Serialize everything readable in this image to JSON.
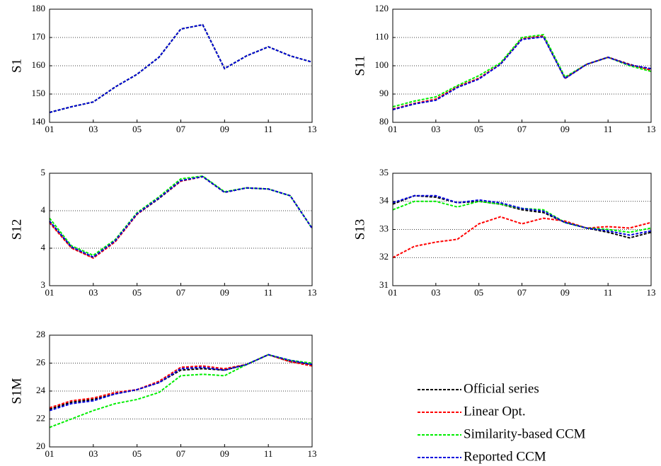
{
  "legend": [
    {
      "name": "Official series",
      "color": "#000000"
    },
    {
      "name": "Linear Opt.",
      "color": "#ff0000"
    },
    {
      "name": "Similarity-based CCM",
      "color": "#00ee00"
    },
    {
      "name": "Reported CCM",
      "color": "#0000dd"
    }
  ],
  "chart_data": [
    {
      "type": "line",
      "ylabel": "S1",
      "categories": [
        "01",
        null,
        "03",
        null,
        "05",
        null,
        "07",
        null,
        "09",
        null,
        "11",
        null,
        "13"
      ],
      "ylim": [
        140,
        180
      ],
      "yticks": [
        140,
        150,
        160,
        170,
        180
      ],
      "grid": true,
      "series": [
        {
          "values": [
            143.5,
            145.5,
            147.2,
            152.5,
            157,
            163,
            173,
            174.5,
            159,
            163.5,
            166.7,
            163.5,
            161.3
          ]
        },
        {
          "values": [
            143.5,
            145.5,
            147.2,
            152.5,
            157,
            163,
            173,
            174.5,
            159,
            163.5,
            166.7,
            163.5,
            161.3
          ]
        },
        {
          "values": [
            143.5,
            145.5,
            147.2,
            152.5,
            157,
            163,
            173,
            174.5,
            159,
            163.5,
            166.7,
            163.5,
            161.3
          ]
        },
        {
          "values": [
            143.5,
            145.5,
            147.2,
            152.5,
            157,
            163,
            173,
            174.5,
            159,
            163.5,
            166.7,
            163.5,
            161.3
          ]
        }
      ]
    },
    {
      "type": "line",
      "ylabel": "S11",
      "categories": [
        "01",
        null,
        "03",
        null,
        "05",
        null,
        "07",
        null,
        "09",
        null,
        "11",
        null,
        "13"
      ],
      "ylim": [
        80,
        120
      ],
      "yticks": [
        80,
        90,
        100,
        110,
        120
      ],
      "grid": true,
      "series": [
        {
          "values": [
            84.5,
            86.5,
            88,
            92.5,
            95.5,
            100.5,
            109.5,
            110.5,
            95.5,
            100.5,
            103,
            100.5,
            98.5
          ]
        },
        {
          "values": [
            84.7,
            86.7,
            88.2,
            92.6,
            95.6,
            100.6,
            109.6,
            110.6,
            95.6,
            100.5,
            103,
            100.4,
            98.4
          ]
        },
        {
          "values": [
            85.5,
            87.5,
            89,
            93,
            96.5,
            101,
            110,
            111,
            96,
            100.5,
            103,
            100,
            98
          ]
        },
        {
          "values": [
            84.5,
            86.5,
            87.8,
            92.3,
            95.3,
            100.5,
            109.3,
            110.2,
            95.5,
            100.5,
            103,
            100.3,
            99
          ]
        }
      ]
    },
    {
      "type": "line",
      "ylabel": "S12",
      "categories": [
        "01",
        null,
        "03",
        null,
        "05",
        null,
        "07",
        null,
        "09",
        null,
        "11",
        null,
        "13"
      ],
      "ylim": [
        3,
        5
      ],
      "yticks": [
        3,
        {
          "value": 3.6667,
          "label": "4"
        },
        {
          "value": 4.3333,
          "label": "4"
        },
        5
      ],
      "grid": true,
      "series": [
        {
          "values": [
            4.14,
            3.68,
            3.5,
            3.79,
            4.27,
            4.55,
            4.86,
            4.94,
            4.66,
            4.74,
            4.72,
            4.6,
            4.02
          ]
        },
        {
          "values": [
            4.12,
            3.67,
            3.49,
            3.78,
            4.27,
            4.56,
            4.86,
            4.94,
            4.66,
            4.74,
            4.72,
            4.6,
            4.02
          ]
        },
        {
          "values": [
            4.2,
            3.71,
            3.54,
            3.82,
            4.3,
            4.58,
            4.9,
            4.95,
            4.67,
            4.74,
            4.72,
            4.6,
            4.02
          ]
        },
        {
          "values": [
            4.15,
            3.69,
            3.51,
            3.8,
            4.28,
            4.56,
            4.87,
            4.94,
            4.66,
            4.74,
            4.72,
            4.6,
            4.02
          ]
        }
      ]
    },
    {
      "type": "line",
      "ylabel": "S13",
      "categories": [
        "01",
        null,
        "03",
        null,
        "05",
        null,
        "07",
        null,
        "09",
        null,
        "11",
        null,
        "13"
      ],
      "ylim": [
        31,
        35
      ],
      "yticks": [
        31,
        32,
        33,
        34,
        35
      ],
      "grid": true,
      "series": [
        {
          "values": [
            33.9,
            34.2,
            34.15,
            33.95,
            34,
            33.9,
            33.7,
            33.6,
            33.25,
            33.05,
            32.9,
            32.7,
            32.9
          ]
        },
        {
          "values": [
            32,
            32.4,
            32.55,
            32.65,
            33.2,
            33.45,
            33.2,
            33.4,
            33.3,
            33.05,
            33.1,
            33.05,
            33.25
          ]
        },
        {
          "values": [
            33.7,
            34,
            34,
            33.8,
            34,
            33.9,
            33.75,
            33.7,
            33.25,
            33.05,
            33,
            32.9,
            33.05
          ]
        },
        {
          "values": [
            33.95,
            34.2,
            34.2,
            33.95,
            34.05,
            33.95,
            33.75,
            33.65,
            33.25,
            33.05,
            32.95,
            32.8,
            32.95
          ]
        }
      ]
    },
    {
      "type": "line",
      "ylabel": "S1M",
      "categories": [
        "01",
        null,
        "03",
        null,
        "05",
        null,
        "07",
        null,
        "09",
        null,
        "11",
        null,
        "13"
      ],
      "ylim": [
        20,
        28
      ],
      "yticks": [
        20,
        22,
        24,
        26,
        28
      ],
      "grid": true,
      "series": [
        {
          "values": [
            22.7,
            23.2,
            23.4,
            23.8,
            24.1,
            24.6,
            25.5,
            25.6,
            25.5,
            25.9,
            26.6,
            26.1,
            25.9
          ]
        },
        {
          "values": [
            22.8,
            23.3,
            23.5,
            23.9,
            24.1,
            24.7,
            25.7,
            25.8,
            25.6,
            25.9,
            26.6,
            26.1,
            25.8
          ]
        },
        {
          "values": [
            21.4,
            22,
            22.6,
            23.1,
            23.4,
            23.9,
            25.1,
            25.2,
            25.1,
            25.9,
            26.6,
            26.2,
            26
          ]
        },
        {
          "values": [
            22.6,
            23.1,
            23.3,
            23.8,
            24.1,
            24.6,
            25.6,
            25.7,
            25.5,
            25.9,
            26.6,
            26.2,
            25.9
          ]
        }
      ]
    }
  ]
}
